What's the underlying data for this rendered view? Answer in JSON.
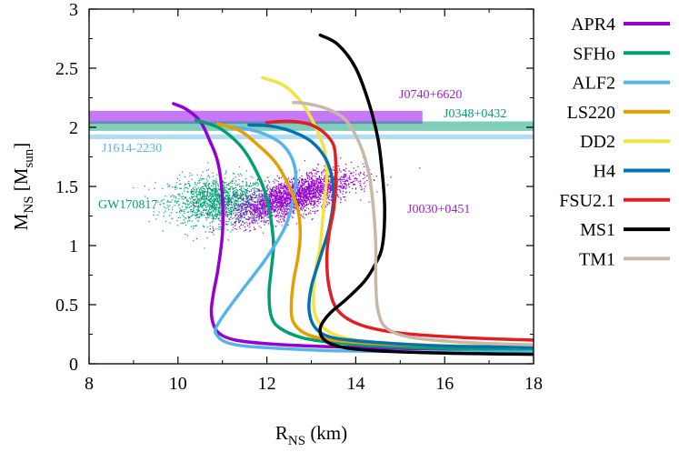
{
  "chart_data": {
    "type": "line",
    "xlabel": {
      "main": "R",
      "sub": "NS",
      "unit": " (km)"
    },
    "ylabel": {
      "main": "M",
      "sub": "NS",
      "unit_open": " [M",
      "unit_sub": "sun",
      "unit_close": "]"
    },
    "xlim": [
      8,
      18
    ],
    "ylim": [
      0,
      3
    ],
    "xticks": [
      "8",
      "10",
      "12",
      "14",
      "16",
      "18"
    ],
    "yticks": [
      "0",
      "0.5",
      "1",
      "1.5",
      "2",
      "2.5",
      "3"
    ],
    "grid": false,
    "legend_position": "right",
    "series": [
      {
        "name": "APR4",
        "color": "#9400d3",
        "r": [
          18.0,
          15.0,
          13.0,
          12.0,
          11.3,
          10.95,
          10.8,
          10.75,
          10.8,
          10.9,
          11.0,
          11.0,
          10.9,
          10.7,
          10.5,
          10.2,
          9.9
        ],
        "m": [
          0.12,
          0.13,
          0.15,
          0.17,
          0.2,
          0.25,
          0.33,
          0.45,
          0.6,
          0.8,
          1.1,
          1.4,
          1.7,
          1.9,
          2.05,
          2.15,
          2.2
        ]
      },
      {
        "name": "SFHo",
        "color": "#009e73",
        "r": [
          18.0,
          16.0,
          14.5,
          13.5,
          12.8,
          12.3,
          12.1,
          12.05,
          12.1,
          12.15,
          12.1,
          12.0,
          11.8,
          11.5,
          11.2,
          10.9,
          10.6,
          10.4
        ],
        "m": [
          0.12,
          0.13,
          0.15,
          0.18,
          0.22,
          0.3,
          0.4,
          0.6,
          0.8,
          1.0,
          1.2,
          1.4,
          1.6,
          1.8,
          1.92,
          2.0,
          2.04,
          2.06
        ]
      },
      {
        "name": "ALF2",
        "color": "#56b4e9",
        "r": [
          18.0,
          15.5,
          13.5,
          12.3,
          11.5,
          11.1,
          10.9,
          10.85,
          11.1,
          11.5,
          12.0,
          12.4,
          12.6,
          12.65,
          12.55,
          12.3,
          11.9,
          11.5,
          11.2
        ],
        "m": [
          0.1,
          0.1,
          0.11,
          0.13,
          0.15,
          0.18,
          0.23,
          0.3,
          0.45,
          0.65,
          0.9,
          1.15,
          1.4,
          1.6,
          1.75,
          1.87,
          1.95,
          1.99,
          2.0
        ]
      },
      {
        "name": "LS220",
        "color": "#e69f00",
        "r": [
          18.0,
          16.0,
          14.5,
          13.5,
          12.9,
          12.6,
          12.55,
          12.6,
          12.7,
          12.75,
          12.7,
          12.5,
          12.2,
          11.8,
          11.4,
          10.9
        ],
        "m": [
          0.14,
          0.15,
          0.17,
          0.2,
          0.25,
          0.35,
          0.5,
          0.7,
          0.9,
          1.1,
          1.3,
          1.5,
          1.7,
          1.85,
          1.97,
          2.03
        ]
      },
      {
        "name": "DD2",
        "color": "#f0e442",
        "r": [
          18.0,
          16.5,
          15.0,
          14.0,
          13.4,
          13.1,
          13.05,
          13.1,
          13.2,
          13.25,
          13.3,
          13.35,
          13.3,
          13.1,
          12.8,
          12.4,
          11.9
        ],
        "m": [
          0.14,
          0.15,
          0.17,
          0.2,
          0.27,
          0.4,
          0.6,
          0.8,
          1.0,
          1.2,
          1.4,
          1.6,
          1.8,
          2.0,
          2.2,
          2.35,
          2.42
        ]
      },
      {
        "name": "H4",
        "color": "#0072b2",
        "r": [
          18.0,
          16.0,
          14.5,
          13.5,
          13.1,
          12.95,
          13.0,
          13.2,
          13.4,
          13.5,
          13.45,
          13.3,
          13.0,
          12.6,
          12.1,
          11.6
        ],
        "m": [
          0.14,
          0.15,
          0.18,
          0.22,
          0.3,
          0.45,
          0.65,
          0.9,
          1.15,
          1.4,
          1.6,
          1.75,
          1.88,
          1.96,
          2.01,
          2.02
        ]
      },
      {
        "name": "FSU2.1",
        "color": "#e02020",
        "r": [
          18.0,
          16.5,
          15.0,
          14.1,
          13.6,
          13.4,
          13.35,
          13.4,
          13.5,
          13.55,
          13.55,
          13.5,
          13.3,
          13.0,
          12.6,
          12.3,
          12.0
        ],
        "m": [
          0.2,
          0.22,
          0.26,
          0.33,
          0.45,
          0.65,
          0.9,
          1.1,
          1.3,
          1.5,
          1.7,
          1.85,
          1.95,
          2.02,
          2.05,
          2.05,
          2.04
        ]
      },
      {
        "name": "MS1",
        "color": "#000000",
        "r": [
          18.0,
          16.0,
          14.5,
          13.7,
          13.3,
          13.2,
          13.4,
          13.8,
          14.2,
          14.45,
          14.6,
          14.65,
          14.6,
          14.5,
          14.3,
          14.0,
          13.6,
          13.2
        ],
        "m": [
          0.08,
          0.09,
          0.11,
          0.14,
          0.2,
          0.3,
          0.42,
          0.55,
          0.7,
          0.85,
          1.0,
          1.3,
          1.6,
          1.9,
          2.2,
          2.5,
          2.7,
          2.78
        ]
      },
      {
        "name": "TM1",
        "color": "#c8b8a8",
        "r": [
          18.0,
          16.5,
          15.3,
          14.7,
          14.5,
          14.45,
          14.45,
          14.4,
          14.3,
          14.1,
          13.8,
          13.4,
          12.9,
          12.6
        ],
        "m": [
          0.16,
          0.18,
          0.22,
          0.3,
          0.45,
          0.7,
          1.0,
          1.3,
          1.6,
          1.85,
          2.05,
          2.15,
          2.2,
          2.21
        ]
      }
    ],
    "bands": [
      {
        "name": "J0740+6620",
        "color": "#a020f0",
        "alpha": 0.6,
        "r_from": 8.0,
        "r_to": 15.5,
        "m_from": 2.03,
        "m_to": 2.14,
        "label_color": "#a020c0"
      },
      {
        "name": "J0348+0432",
        "color": "#009e73",
        "alpha": 0.5,
        "r_from": 8.0,
        "r_to": 18.0,
        "m_from": 1.97,
        "m_to": 2.05,
        "label_color": "#009e73"
      },
      {
        "name": "J1614-2230",
        "color": "#56b4e9",
        "alpha": 0.45,
        "r_from": 8.0,
        "r_to": 18.0,
        "m_from": 1.9,
        "m_to": 1.94,
        "label_color": "#56b4e9"
      }
    ],
    "clouds": [
      {
        "name": "GW170817",
        "color": "#009e73",
        "label_color": "#009e73",
        "r_center": 10.9,
        "r_spread": 1.0,
        "m_center": 1.38,
        "m_spread": 0.18,
        "count": 1600
      },
      {
        "name": "J0030+0451",
        "color": "#9400d3",
        "label_color": "#a020c0",
        "r_center": 12.6,
        "r_spread": 1.2,
        "m_center": 1.42,
        "m_spread": 0.14,
        "slope": 0.11,
        "count": 2600
      }
    ]
  }
}
